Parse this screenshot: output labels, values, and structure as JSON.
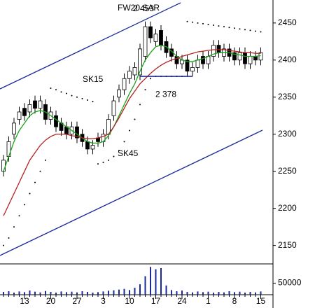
{
  "chart_data": {
    "type": "candlestick",
    "title": "FW20 SAR",
    "categories": [
      null,
      null,
      null,
      null,
      "13",
      null,
      null,
      null,
      null,
      "20",
      null,
      null,
      null,
      null,
      "27",
      null,
      null,
      null,
      null,
      "3",
      null,
      null,
      null,
      null,
      "10",
      null,
      null,
      null,
      null,
      "17",
      null,
      null,
      null,
      null,
      "24",
      null,
      null,
      null,
      null,
      "1",
      null,
      null,
      null,
      null,
      "8",
      null,
      null,
      null,
      null,
      "15"
    ],
    "open": [
      2250,
      2270,
      2300,
      2320,
      2335,
      2330,
      2345,
      2335,
      2340,
      2320,
      2325,
      2315,
      2310,
      2300,
      2310,
      2300,
      2290,
      2280,
      2295,
      2290,
      2300,
      2325,
      2350,
      2360,
      2375,
      2380,
      2380,
      2405,
      2445,
      2425,
      2440,
      2425,
      2415,
      2405,
      2395,
      2400,
      2385,
      2390,
      2405,
      2395,
      2405,
      2420,
      2405,
      2415,
      2410,
      2400,
      2410,
      2395,
      2405,
      2400
    ],
    "high": [
      2272,
      2297,
      2322,
      2337,
      2342,
      2347,
      2352,
      2352,
      2347,
      2337,
      2332,
      2322,
      2317,
      2317,
      2317,
      2307,
      2297,
      2292,
      2302,
      2307,
      2327,
      2352,
      2367,
      2382,
      2392,
      2397,
      2422,
      2452,
      2452,
      2442,
      2447,
      2432,
      2422,
      2412,
      2407,
      2407,
      2397,
      2407,
      2412,
      2412,
      2427,
      2427,
      2422,
      2422,
      2417,
      2417,
      2417,
      2412,
      2412,
      2417
    ],
    "low": [
      2243,
      2263,
      2293,
      2313,
      2318,
      2323,
      2328,
      2328,
      2313,
      2313,
      2303,
      2298,
      2293,
      2293,
      2288,
      2283,
      2273,
      2273,
      2283,
      2283,
      2293,
      2318,
      2343,
      2353,
      2368,
      2373,
      2373,
      2398,
      2423,
      2418,
      2413,
      2403,
      2398,
      2388,
      2388,
      2378,
      2378,
      2383,
      2388,
      2388,
      2398,
      2403,
      2398,
      2398,
      2393,
      2393,
      2388,
      2388,
      2393,
      2393
    ],
    "close": [
      2265,
      2290,
      2315,
      2330,
      2325,
      2340,
      2335,
      2345,
      2320,
      2330,
      2310,
      2305,
      2300,
      2310,
      2295,
      2290,
      2280,
      2285,
      2290,
      2300,
      2320,
      2345,
      2360,
      2375,
      2385,
      2390,
      2415,
      2445,
      2430,
      2435,
      2420,
      2410,
      2405,
      2395,
      2400,
      2385,
      2390,
      2400,
      2395,
      2405,
      2420,
      2410,
      2415,
      2405,
      2400,
      2410,
      2395,
      2405,
      2400,
      2410
    ],
    "series": [
      {
        "name": "SK15",
        "color": "#1aa31a",
        "values": [
          2250,
          2270,
          2290,
          2305,
          2315,
          2325,
          2330,
          2332,
          2330,
          2325,
          2320,
          2315,
          2310,
          2305,
          2300,
          2295,
          2290,
          2288,
          2288,
          2290,
          2298,
          2310,
          2325,
          2340,
          2355,
          2368,
          2385,
          2400,
          2410,
          2418,
          2420,
          2418,
          2412,
          2405,
          2400,
          2398,
          2398,
          2400,
          2402,
          2405,
          2408,
          2410,
          2410,
          2410,
          2408,
          2407,
          2405,
          2405,
          2405,
          2406
        ]
      },
      {
        "name": "SK45",
        "color": "#b22222",
        "values": [
          2190,
          2205,
          2220,
          2235,
          2250,
          2265,
          2275,
          2285,
          2292,
          2297,
          2300,
          2300,
          2300,
          2298,
          2297,
          2295,
          2294,
          2294,
          2295,
          2297,
          2300,
          2310,
          2322,
          2335,
          2348,
          2358,
          2368,
          2375,
          2382,
          2388,
          2393,
          2397,
          2400,
          2402,
          2405,
          2407,
          2409,
          2411,
          2412,
          2413,
          2414,
          2414,
          2414,
          2413,
          2412,
          2411,
          2410,
          2410,
          2409,
          2409
        ]
      }
    ],
    "sar": [
      2150,
      2160,
      2175,
      2190,
      2205,
      2220,
      2235,
      2250,
      2265,
      2362,
      2360,
      2357,
      2355,
      2352,
      2350,
      2348,
      2346,
      2344,
      2260,
      2262,
      2265,
      2270,
      2278,
      2290,
      2305,
      2320,
      2340,
      2360,
      2375,
      2378,
      2378,
      2378,
      2378,
      2378,
      2378,
      2452,
      2451,
      2450,
      2449,
      2448,
      2447,
      2446,
      2445,
      2444,
      2443,
      2442,
      2441,
      2440,
      2439,
      2438
    ],
    "volume": [
      12000,
      15000,
      9000,
      14000,
      11000,
      18000,
      13000,
      10000,
      16000,
      12000,
      9000,
      14000,
      11000,
      13000,
      10000,
      15000,
      12000,
      9000,
      11000,
      14000,
      17000,
      19000,
      22000,
      25000,
      20000,
      30000,
      45000,
      80000,
      120000,
      110000,
      115000,
      40000,
      20000,
      15000,
      18000,
      12000,
      10000,
      14000,
      11000,
      13000,
      9000,
      12000,
      10000,
      15000,
      11000,
      13000,
      9000,
      12000,
      10000,
      14000
    ],
    "ylim": [
      2127,
      2481
    ],
    "yticks": [
      2150,
      2200,
      2250,
      2300,
      2350,
      2400,
      2450
    ],
    "vol_ylim": [
      0,
      130000
    ],
    "vol_yticks": [
      50000
    ],
    "annotations": [
      {
        "value": 2453,
        "label": "2 453"
      },
      {
        "value": 2378,
        "label": "2 378"
      }
    ]
  }
}
